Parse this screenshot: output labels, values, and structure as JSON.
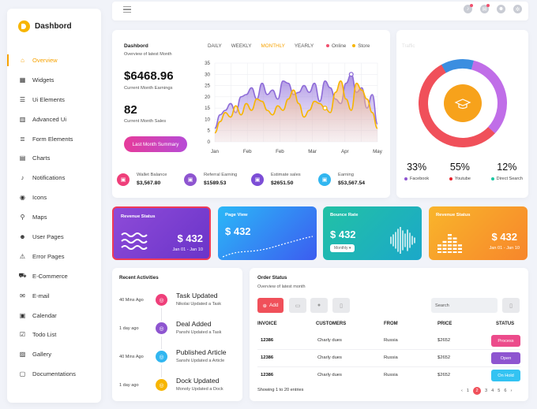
{
  "brand": {
    "name": "Dashbord"
  },
  "sidebar": {
    "items": [
      {
        "label": "Overview",
        "icon": "home-icon",
        "glyph": "⌂"
      },
      {
        "label": "Widgets",
        "icon": "grid-icon",
        "glyph": "▦"
      },
      {
        "label": "Ui Elements",
        "icon": "list-icon",
        "glyph": "☰"
      },
      {
        "label": "Advanced Ui",
        "icon": "bar-icon",
        "glyph": "▥"
      },
      {
        "label": "Form Elements",
        "icon": "form-icon",
        "glyph": "≣"
      },
      {
        "label": "Charts",
        "icon": "chart-icon",
        "glyph": "▤"
      },
      {
        "label": "Notifications",
        "icon": "bell-icon",
        "glyph": "♪"
      },
      {
        "label": "Icons",
        "icon": "icons-icon",
        "glyph": "◉"
      },
      {
        "label": "Maps",
        "icon": "map-pin-icon",
        "glyph": "⚲"
      },
      {
        "label": "User Pages",
        "icon": "user-icon",
        "glyph": "☻"
      },
      {
        "label": "Error Pages",
        "icon": "warning-icon",
        "glyph": "⚠"
      },
      {
        "label": "E-Commerce",
        "icon": "cart-icon",
        "glyph": "⛟"
      },
      {
        "label": "E-mail",
        "icon": "mail-icon",
        "glyph": "✉"
      },
      {
        "label": "Calendar",
        "icon": "calendar-icon",
        "glyph": "▣"
      },
      {
        "label": "Todo List",
        "icon": "todo-icon",
        "glyph": "☑"
      },
      {
        "label": "Gallery",
        "icon": "gallery-icon",
        "glyph": "▨"
      },
      {
        "label": "Documentations",
        "icon": "document-icon",
        "glyph": "▢"
      }
    ]
  },
  "overview": {
    "title": "Dashbord",
    "subtitle": "Overview of latest Month",
    "earnings_value": "$6468.96",
    "earnings_label": "Current Month Earnings",
    "sales_value": "82",
    "sales_label": "Current Month Sales",
    "summary_button": "Last Month Summary",
    "tabs": [
      "DAILY",
      "WEEKLY",
      "MONTHLY",
      "YEARLY"
    ],
    "active_tab": "MONTHLY",
    "legend": [
      {
        "name": "Online",
        "color": "#f0506e"
      },
      {
        "name": "Store",
        "color": "#f7b500"
      }
    ],
    "stats": [
      {
        "label": "Wallet Balance",
        "value": "$3,567.80",
        "color": "#ef3f7a",
        "icon": "wallet-icon"
      },
      {
        "label": "Referral Earning",
        "value": "$1589.53",
        "color": "#8e55d0",
        "icon": "referral-icon"
      },
      {
        "label": "Estimate sales",
        "value": "$2651.50",
        "color": "#7c4dd6",
        "icon": "estimate-icon"
      },
      {
        "label": "Earning",
        "value": "$53,567.54",
        "color": "#31b6f0",
        "icon": "earning-icon"
      }
    ]
  },
  "chart_data": {
    "type": "area",
    "x_ticks": [
      "Jan",
      "Feb",
      "Feb",
      "Mar",
      "Apr",
      "May"
    ],
    "ylim": [
      0,
      35
    ],
    "y_ticks": [
      0,
      5,
      10,
      15,
      20,
      25,
      30,
      35
    ],
    "grid": true,
    "series": [
      {
        "name": "Online",
        "color": "#8e6cd8",
        "points": [
          [
            0,
            6
          ],
          [
            0.5,
            12
          ],
          [
            1,
            14
          ],
          [
            1.5,
            17
          ],
          [
            2,
            13
          ],
          [
            2.5,
            20
          ],
          [
            3,
            21
          ],
          [
            3.5,
            24
          ],
          [
            4,
            19
          ],
          [
            4.5,
            26
          ],
          [
            5,
            21
          ],
          [
            5.5,
            23
          ],
          [
            6,
            19
          ],
          [
            6.5,
            27
          ],
          [
            7,
            26
          ],
          [
            7.5,
            21
          ],
          [
            8,
            22
          ],
          [
            8.5,
            25
          ],
          [
            9,
            22
          ],
          [
            9.5,
            26
          ],
          [
            10,
            18
          ],
          [
            10.5,
            27
          ],
          [
            11,
            24
          ],
          [
            11.5,
            19
          ],
          [
            12,
            17
          ],
          [
            12.5,
            26
          ],
          [
            13,
            30
          ],
          [
            13.5,
            22
          ],
          [
            14,
            24
          ],
          [
            14.5,
            15
          ],
          [
            15,
            21
          ],
          [
            15.5,
            8
          ]
        ]
      },
      {
        "name": "Store",
        "color": "#f7b500",
        "points": [
          [
            0,
            4
          ],
          [
            0.5,
            9
          ],
          [
            1,
            13
          ],
          [
            1.5,
            11
          ],
          [
            2,
            16
          ],
          [
            2.5,
            12
          ],
          [
            3,
            17
          ],
          [
            3.5,
            14
          ],
          [
            4,
            19
          ],
          [
            4.5,
            18
          ],
          [
            5,
            14
          ],
          [
            5.5,
            12
          ],
          [
            6,
            16
          ],
          [
            6.5,
            14
          ],
          [
            7,
            19
          ],
          [
            7.5,
            23
          ],
          [
            8,
            17
          ],
          [
            8.5,
            11
          ],
          [
            9,
            14
          ],
          [
            9.5,
            18
          ],
          [
            10,
            17
          ],
          [
            10.5,
            15
          ],
          [
            11,
            13
          ],
          [
            11.5,
            22
          ],
          [
            12,
            27
          ],
          [
            12.5,
            19
          ],
          [
            13,
            14
          ],
          [
            13.5,
            26
          ],
          [
            14,
            23
          ],
          [
            14.5,
            19
          ],
          [
            15,
            13
          ],
          [
            15.5,
            6
          ]
        ]
      }
    ],
    "markers": [
      {
        "series": "Online",
        "x": 13,
        "y": 30
      },
      {
        "series": "Store",
        "x": 10.5,
        "y": 15
      }
    ]
  },
  "donut": {
    "faint_label": "Traffic",
    "segments": [
      {
        "name": "Facebook",
        "value": 33,
        "color": "#c06ee8"
      },
      {
        "name": "Youtube",
        "value": 55,
        "color": "#f0505a"
      },
      {
        "name": "Direct Search",
        "value": 12,
        "color": "#3b8ee0"
      }
    ],
    "percent_labels": [
      "33%",
      "55%",
      "12%"
    ],
    "legend_dot_colors": [
      "#8e55d0",
      "#e8202a",
      "#19c7a2"
    ],
    "center_icon": "graduation-cap-icon"
  },
  "cards": [
    {
      "title": "Revenue Status",
      "value": "$ 432",
      "date": "Jan 01 - Jan 10",
      "icon": "wave-icon"
    },
    {
      "title": "Page View",
      "value": "$ 432",
      "icon": "line-icon"
    },
    {
      "title": "Bounce Rate",
      "value": "$ 432",
      "pill": "Monthly",
      "icon": "soundwave-icon"
    },
    {
      "title": "Revenue Status",
      "value": "$ 432",
      "date": "Jan 01 - Jan 10",
      "icon": "bars-icon"
    }
  ],
  "activities": {
    "title": "Recent Activities",
    "items": [
      {
        "time": "40 Mins Ago",
        "name": "Task Updated",
        "desc": "Nikolai Updated a Task",
        "color": "#ef3f7a",
        "icon": "check-icon"
      },
      {
        "time": "1 day ago",
        "name": "Deal Added",
        "desc": "Panshi Updated a Task",
        "color": "#8e55d0",
        "icon": "deal-icon"
      },
      {
        "time": "40 Mins Ago",
        "name": "Published Article",
        "desc": "Sanshi Updated a Article",
        "color": "#31b6f0",
        "icon": "article-icon"
      },
      {
        "time": "1 day ago",
        "name": "Dock Updated",
        "desc": "Monoly Updated a Dock",
        "color": "#f7b500",
        "icon": "dock-icon"
      }
    ]
  },
  "orders": {
    "title": "Order Status",
    "subtitle": "Overview of latest month",
    "add_label": "Add",
    "search_placeholder": "Search",
    "headers": [
      "INVOICE",
      "CUSTOMERS",
      "FROM",
      "PRICE",
      "STATUS"
    ],
    "rows": [
      {
        "invoice": "12386",
        "customer": "Charly dues",
        "from": "Russia",
        "price": "$2652",
        "status": "Process",
        "color": "#ec4b8b"
      },
      {
        "invoice": "12386",
        "customer": "Charly dues",
        "from": "Russia",
        "price": "$2652",
        "status": "Open",
        "color": "#8e55d0"
      },
      {
        "invoice": "12386",
        "customer": "Charly dues",
        "from": "Russia",
        "price": "$2652",
        "status": "On Hold",
        "color": "#33c3f2"
      }
    ],
    "showing": "Showing 1 to 20 entries",
    "pages": [
      "1",
      "2",
      "3",
      "4",
      "5",
      "6"
    ],
    "active_page": "2"
  }
}
